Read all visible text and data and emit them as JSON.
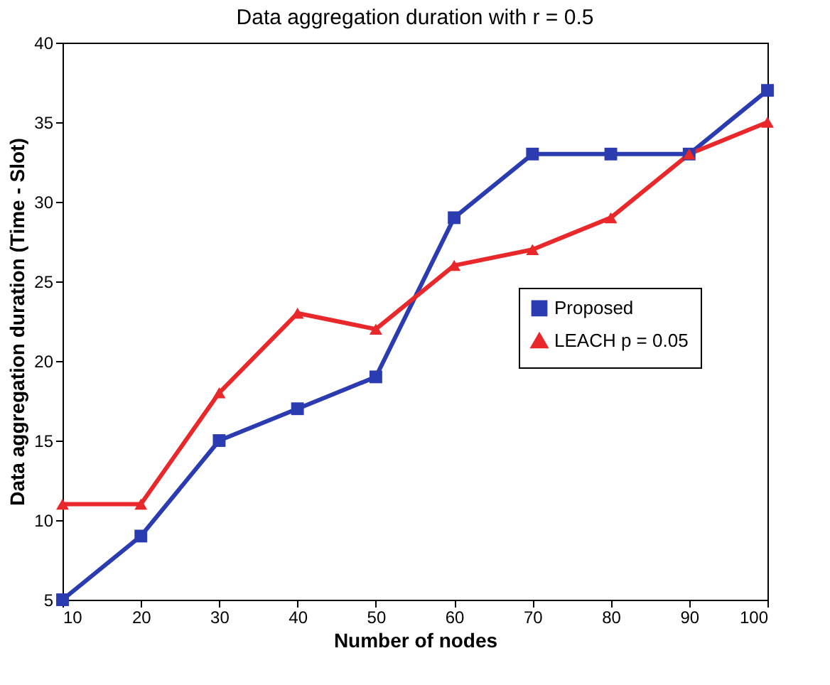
{
  "chart_data": {
    "type": "line",
    "title": "Data aggregation duration with r = 0.5",
    "xlabel": "Number of nodes",
    "ylabel": "Data aggregation duration (Time - Slot)",
    "x": [
      10,
      20,
      30,
      40,
      50,
      60,
      70,
      80,
      90,
      100
    ],
    "series": [
      {
        "name": "Proposed",
        "color": "#2b3bb0",
        "marker": "square",
        "values": [
          5,
          9,
          15,
          17,
          19,
          29,
          33,
          33,
          33,
          37
        ]
      },
      {
        "name": "LEACH p = 0.05",
        "color": "#e8282a",
        "marker": "triangle",
        "values": [
          11,
          11,
          18,
          23,
          22,
          26,
          27,
          29,
          33,
          35
        ]
      }
    ],
    "xlim": [
      10,
      100
    ],
    "xticks": [
      10,
      20,
      30,
      40,
      50,
      60,
      70,
      80,
      90,
      100
    ],
    "ylim": [
      5,
      40
    ],
    "yticks": [
      5,
      10,
      15,
      20,
      25,
      30,
      35,
      40
    ],
    "grid": false,
    "legend": "right",
    "line_style": "solid"
  }
}
